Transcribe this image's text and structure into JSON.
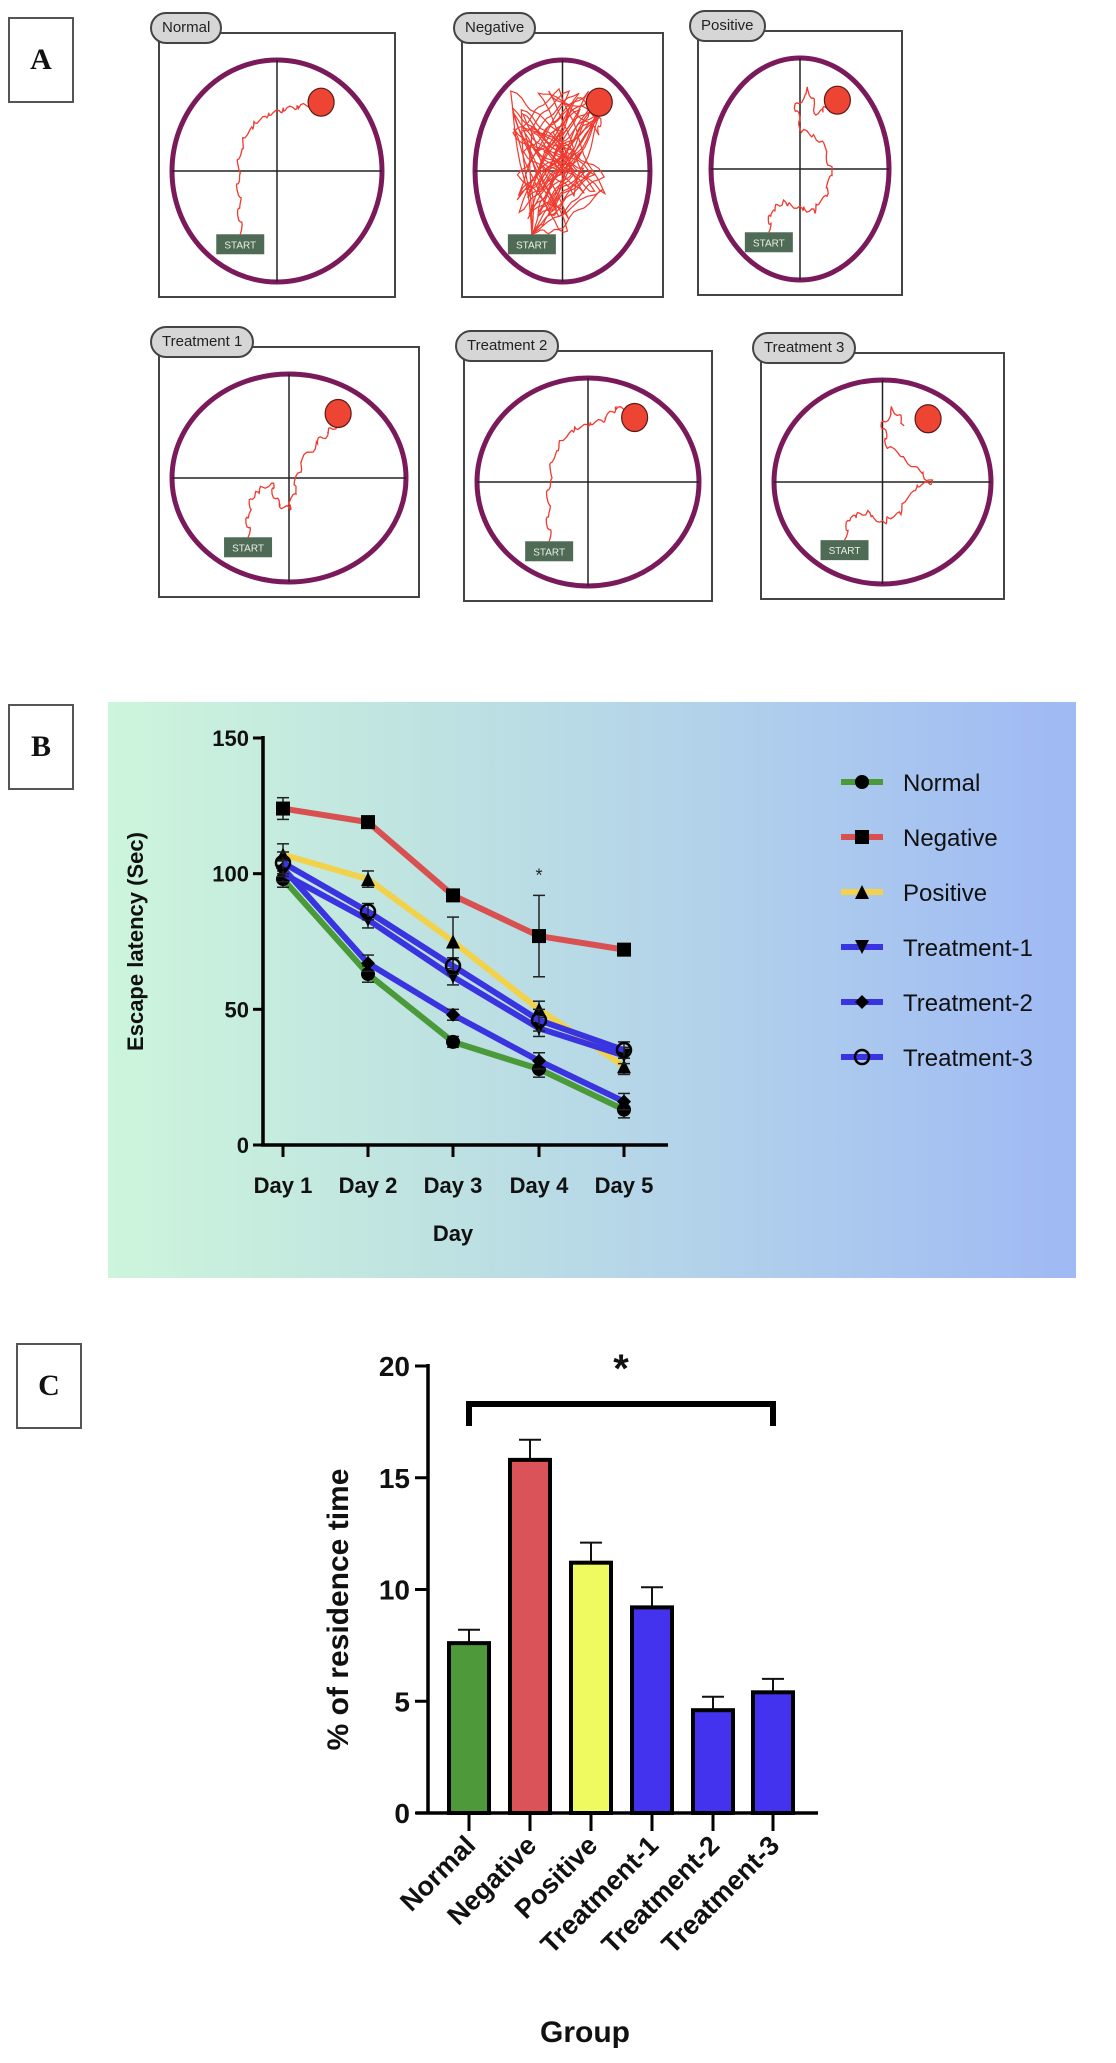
{
  "panel_labels": {
    "a": "A",
    "b": "B",
    "c": "C"
  },
  "panel_a": {
    "mazes": [
      {
        "label": "Normal",
        "start_label": "START"
      },
      {
        "label": "Negative",
        "start_label": "START"
      },
      {
        "label": "Positive",
        "start_label": "START"
      },
      {
        "label": "Treatment 1",
        "start_label": "START"
      },
      {
        "label": "Treatment 2",
        "start_label": "START"
      },
      {
        "label": "Treatment 3",
        "start_label": "START"
      }
    ],
    "colors": {
      "pool": "#7a1a5a",
      "path": "#f03a2e",
      "platform": "#ee4433",
      "start_bg": "#4f6b55"
    }
  },
  "chart_data": [
    {
      "type": "line",
      "title": "",
      "xlabel": "Day",
      "ylabel": "Escape latency (Sec)",
      "categories": [
        "Day 1",
        "Day 2",
        "Day 3",
        "Day 4",
        "Day 5"
      ],
      "ylim": [
        0,
        150
      ],
      "yticks": [
        0,
        50,
        100,
        150
      ],
      "grid": false,
      "legend_position": "right",
      "annotations": [
        {
          "text": "*",
          "category": "Day 4"
        }
      ],
      "series": [
        {
          "name": "Normal",
          "color": "#4a9a3a",
          "marker": "circle",
          "values": [
            98,
            63,
            38,
            28,
            13
          ],
          "errors": [
            3,
            3,
            2,
            3,
            3
          ]
        },
        {
          "name": "Negative",
          "color": "#d95050",
          "marker": "square",
          "values": [
            124,
            119,
            92,
            77,
            72
          ],
          "errors": [
            4,
            2,
            2,
            15,
            2
          ]
        },
        {
          "name": "Positive",
          "color": "#f2d24a",
          "marker": "triangle-up",
          "values": [
            107,
            98,
            75,
            50,
            29
          ],
          "errors": [
            4,
            3,
            9,
            3,
            3
          ]
        },
        {
          "name": "Treatment-1",
          "color": "#3a34e0",
          "marker": "triangle-down",
          "values": [
            100,
            83,
            62,
            43,
            33
          ],
          "errors": [
            3,
            3,
            3,
            3,
            3
          ]
        },
        {
          "name": "Treatment-2",
          "color": "#3a34e0",
          "marker": "diamond",
          "values": [
            102,
            67,
            48,
            31,
            16
          ],
          "errors": [
            3,
            3,
            2,
            3,
            3
          ]
        },
        {
          "name": "Treatment-3",
          "color": "#3a34e0",
          "marker": "open-circle",
          "values": [
            104,
            86,
            66,
            46,
            35
          ],
          "errors": [
            4,
            3,
            3,
            4,
            3
          ]
        }
      ]
    },
    {
      "type": "bar",
      "title": "",
      "xlabel": "Group",
      "ylabel": "% of residence time",
      "categories": [
        "Normal",
        "Negative",
        "Positive",
        "Treatment-1",
        "Treatment-2",
        "Treatment-3"
      ],
      "values": [
        7.6,
        15.8,
        11.2,
        9.2,
        4.6,
        5.4
      ],
      "errors": [
        0.6,
        0.9,
        0.9,
        0.9,
        0.6,
        0.6
      ],
      "colors": [
        "#4e9a3a",
        "#d95358",
        "#eefa60",
        "#4433ee",
        "#4433ee",
        "#4433ee"
      ],
      "ylim": [
        0,
        20
      ],
      "yticks": [
        0,
        5,
        10,
        15,
        20
      ],
      "grid": false,
      "annotations": [
        {
          "text": "*",
          "type": "bracket",
          "from": "Normal",
          "to": "Treatment-3"
        }
      ]
    }
  ]
}
